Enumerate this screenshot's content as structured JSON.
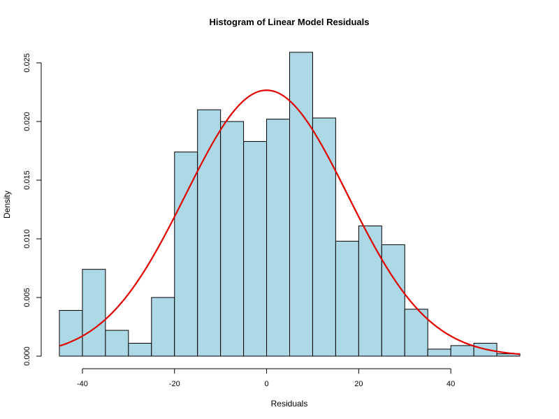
{
  "chart_data": {
    "type": "bar",
    "title": "Histogram of Linear Model Residuals",
    "xlabel": "Residuals",
    "ylabel": "Density",
    "xlim": [
      -45,
      55
    ],
    "ylim": [
      0,
      0.025
    ],
    "x_ticks": [
      -40,
      -20,
      0,
      20,
      40
    ],
    "x_tick_labels": [
      "-40",
      "-20",
      "0",
      "20",
      "40"
    ],
    "y_ticks": [
      0,
      0.005,
      0.01,
      0.015,
      0.02,
      0.025
    ],
    "y_tick_labels": [
      "0.000",
      "0.005",
      "0.010",
      "0.015",
      "0.020",
      "0.025"
    ],
    "bins": [
      {
        "x0": -45,
        "x1": -40,
        "density": 0.0039
      },
      {
        "x0": -40,
        "x1": -35,
        "density": 0.0074
      },
      {
        "x0": -35,
        "x1": -30,
        "density": 0.0022
      },
      {
        "x0": -30,
        "x1": -25,
        "density": 0.0011
      },
      {
        "x0": -25,
        "x1": -20,
        "density": 0.005
      },
      {
        "x0": -20,
        "x1": -15,
        "density": 0.0174
      },
      {
        "x0": -15,
        "x1": -10,
        "density": 0.021
      },
      {
        "x0": -10,
        "x1": -5,
        "density": 0.02
      },
      {
        "x0": -5,
        "x1": 0,
        "density": 0.0183
      },
      {
        "x0": 0,
        "x1": 5,
        "density": 0.0202
      },
      {
        "x0": 5,
        "x1": 10,
        "density": 0.0259
      },
      {
        "x0": 10,
        "x1": 15,
        "density": 0.0203
      },
      {
        "x0": 15,
        "x1": 20,
        "density": 0.0098
      },
      {
        "x0": 20,
        "x1": 25,
        "density": 0.0111
      },
      {
        "x0": 25,
        "x1": 30,
        "density": 0.0095
      },
      {
        "x0": 30,
        "x1": 35,
        "density": 0.004
      },
      {
        "x0": 35,
        "x1": 40,
        "density": 0.0006
      },
      {
        "x0": 40,
        "x1": 45,
        "density": 0.0009
      },
      {
        "x0": 45,
        "x1": 50,
        "density": 0.0011
      },
      {
        "x0": 50,
        "x1": 55,
        "density": 0.0002
      }
    ],
    "curve": {
      "type": "normal",
      "mean": 0,
      "sd": 17.6
    },
    "colors": {
      "bar_fill": "#add8e6",
      "bar_stroke": "#000000",
      "curve": "#e00000"
    },
    "grid": false,
    "legend": "none"
  }
}
